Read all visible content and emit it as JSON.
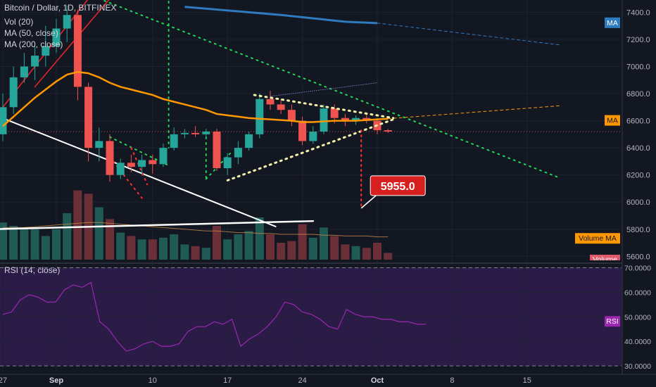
{
  "chart_data": {
    "type": "candlestick",
    "header": {
      "symbol_line": "Bitcoin / Dollar, 1D, BITFINEX",
      "indicators": [
        "Vol (20)",
        "MA (50, close)",
        "MA (200, close)"
      ]
    },
    "price_axis": {
      "ticks": [
        "7400.0",
        "7200.0",
        "7000.0",
        "6800.0",
        "6600.0",
        "6400.0",
        "6200.0",
        "6000.0",
        "5800.0",
        "5600.0"
      ],
      "tick_values": [
        7400,
        7200,
        7000,
        6800,
        6600,
        6400,
        6200,
        6000,
        5800,
        5600
      ],
      "range": [
        5560,
        7480
      ]
    },
    "time_axis": {
      "ticks": [
        "27",
        "Sep",
        "10",
        "17",
        "24",
        "Oct",
        "8",
        "15"
      ],
      "tick_day_index": [
        0,
        5,
        14,
        21,
        28,
        35,
        42,
        49
      ],
      "start_date": "2018-08-27"
    },
    "candles": [
      {
        "o": 6500,
        "h": 6800,
        "l": 6450,
        "c": 6700,
        "v": 44
      },
      {
        "o": 6700,
        "h": 7000,
        "l": 6650,
        "c": 6920,
        "v": 40
      },
      {
        "o": 6920,
        "h": 7100,
        "l": 6880,
        "c": 7000,
        "v": 38
      },
      {
        "o": 7000,
        "h": 7150,
        "l": 6900,
        "c": 7080,
        "v": 36
      },
      {
        "o": 7080,
        "h": 7300,
        "l": 7000,
        "c": 7150,
        "v": 28
      },
      {
        "o": 7150,
        "h": 7350,
        "l": 7100,
        "c": 7280,
        "v": 36
      },
      {
        "o": 7280,
        "h": 7450,
        "l": 7180,
        "c": 7380,
        "v": 55
      },
      {
        "o": 7380,
        "h": 7420,
        "l": 6750,
        "c": 6850,
        "v": 82
      },
      {
        "o": 6850,
        "h": 6880,
        "l": 6300,
        "c": 6400,
        "v": 78
      },
      {
        "o": 6400,
        "h": 6550,
        "l": 6300,
        "c": 6450,
        "v": 62
      },
      {
        "o": 6450,
        "h": 6500,
        "l": 6150,
        "c": 6200,
        "v": 48
      },
      {
        "o": 6200,
        "h": 6320,
        "l": 6170,
        "c": 6290,
        "v": 32
      },
      {
        "o": 6290,
        "h": 6350,
        "l": 6220,
        "c": 6260,
        "v": 28
      },
      {
        "o": 6260,
        "h": 6350,
        "l": 6200,
        "c": 6310,
        "v": 24
      },
      {
        "o": 6310,
        "h": 6350,
        "l": 6210,
        "c": 6280,
        "v": 24
      },
      {
        "o": 6280,
        "h": 6430,
        "l": 6260,
        "c": 6400,
        "v": 26
      },
      {
        "o": 6400,
        "h": 6550,
        "l": 6380,
        "c": 6500,
        "v": 30
      },
      {
        "o": 6500,
        "h": 6540,
        "l": 6470,
        "c": 6510,
        "v": 18
      },
      {
        "o": 6510,
        "h": 6560,
        "l": 6480,
        "c": 6500,
        "v": 16
      },
      {
        "o": 6500,
        "h": 6540,
        "l": 6470,
        "c": 6520,
        "v": 14
      },
      {
        "o": 6520,
        "h": 6540,
        "l": 6230,
        "c": 6250,
        "v": 40
      },
      {
        "o": 6250,
        "h": 6360,
        "l": 6200,
        "c": 6330,
        "v": 24
      },
      {
        "o": 6330,
        "h": 6450,
        "l": 6280,
        "c": 6400,
        "v": 30
      },
      {
        "o": 6400,
        "h": 6520,
        "l": 6380,
        "c": 6500,
        "v": 34
      },
      {
        "o": 6500,
        "h": 6800,
        "l": 6470,
        "c": 6760,
        "v": 50
      },
      {
        "o": 6760,
        "h": 6820,
        "l": 6680,
        "c": 6720,
        "v": 30
      },
      {
        "o": 6720,
        "h": 6760,
        "l": 6650,
        "c": 6680,
        "v": 20
      },
      {
        "o": 6680,
        "h": 6720,
        "l": 6560,
        "c": 6600,
        "v": 22
      },
      {
        "o": 6600,
        "h": 6630,
        "l": 6420,
        "c": 6450,
        "v": 42
      },
      {
        "o": 6450,
        "h": 6560,
        "l": 6430,
        "c": 6520,
        "v": 26
      },
      {
        "o": 6520,
        "h": 6720,
        "l": 6500,
        "c": 6690,
        "v": 38
      },
      {
        "o": 6690,
        "h": 6720,
        "l": 6580,
        "c": 6620,
        "v": 28
      },
      {
        "o": 6620,
        "h": 6650,
        "l": 6560,
        "c": 6600,
        "v": 18
      },
      {
        "o": 6600,
        "h": 6640,
        "l": 6570,
        "c": 6620,
        "v": 16
      },
      {
        "o": 6620,
        "h": 6650,
        "l": 6580,
        "c": 6600,
        "v": 14
      },
      {
        "o": 6600,
        "h": 6620,
        "l": 6500,
        "c": 6530,
        "v": 20
      },
      {
        "o": 6530,
        "h": 6540,
        "l": 6510,
        "c": 6520,
        "v": 8
      }
    ],
    "ma50": [
      6560,
      6630,
      6700,
      6770,
      6830,
      6890,
      6940,
      6960,
      6950,
      6920,
      6880,
      6850,
      6830,
      6810,
      6790,
      6760,
      6740,
      6720,
      6700,
      6680,
      6650,
      6640,
      6630,
      6620,
      6615,
      6610,
      6605,
      6600,
      6590,
      6590,
      6595,
      6600,
      6600,
      6600,
      6605,
      6610,
      6615
    ],
    "ma200": {
      "label": "MA",
      "points": [
        [
          17,
          7440
        ],
        [
          20,
          7420
        ],
        [
          26,
          7380
        ],
        [
          32,
          7330
        ],
        [
          35,
          7320
        ]
      ]
    },
    "ma200_projection": {
      "from": [
        35,
        7320
      ],
      "to": [
        52,
        7160
      ]
    },
    "ma50_projection": {
      "from": [
        36,
        6615
      ],
      "to": [
        52,
        6710
      ]
    },
    "volume_ma": [
      38,
      38,
      38,
      39,
      40,
      41,
      42,
      43,
      44,
      44,
      43,
      42,
      41,
      40,
      39,
      38,
      37,
      36,
      35,
      34,
      34,
      33,
      32,
      32,
      31,
      31,
      30,
      30,
      30,
      30,
      29,
      29,
      28,
      28,
      28,
      27,
      27
    ],
    "drawings": {
      "red_channel": [
        {
          "from": [
            -1,
            6600
          ],
          "to": [
            10,
            7700
          ]
        },
        {
          "from": [
            3,
            6850
          ],
          "to": [
            10,
            7500
          ]
        }
      ],
      "white_line_falling": {
        "from": [
          -1,
          6650
        ],
        "to": [
          25.5,
          5820
        ]
      },
      "white_line_flat": {
        "from": [
          -1,
          5800
        ],
        "to": [
          29,
          5860
        ]
      },
      "green_trend_long": {
        "from": [
          9,
          7500
        ],
        "to": [
          52,
          6180
        ]
      },
      "green_vertical": {
        "from": [
          15.5,
          7480
        ],
        "to": [
          15.5,
          6400
        ]
      },
      "green_flag_upper": {
        "from": [
          10,
          6480
        ],
        "to": [
          15.5,
          6270
        ]
      },
      "green_vertical_2": {
        "from": [
          19,
          6520
        ],
        "to": [
          19,
          6170
        ]
      },
      "green_flag_lower": {
        "from": [
          19,
          6170
        ],
        "to": [
          21.5,
          6380
        ]
      },
      "red_dotted_1": {
        "from": [
          10,
          6330
        ],
        "to": [
          13,
          6030
        ]
      },
      "red_dotted_2": {
        "from": [
          12,
          6400
        ],
        "to": [
          13.5,
          6130
        ]
      },
      "triangle_upper": {
        "from": [
          23.5,
          6790
        ],
        "to": [
          36.5,
          6620
        ]
      },
      "triangle_lower": {
        "from": [
          21,
          6160
        ],
        "to": [
          36.5,
          6610
        ]
      },
      "purple_upper": {
        "from": [
          25,
          6780
        ],
        "to": [
          35,
          6880
        ]
      },
      "price_line": 6520,
      "target_drop": {
        "from": [
          33.5,
          6530
        ],
        "to": [
          33.5,
          5960
        ]
      }
    },
    "target_label": "5955.0",
    "target_value": 5955.0,
    "pill_ma200": "MA",
    "pill_ma50": "MA",
    "volume_ma_label": "Volume MA",
    "volume_pill": "Volume",
    "rsi": {
      "title": "RSI (14, close)",
      "ticks": [
        "70.0000",
        "60.0000",
        "50.0000",
        "40.0000",
        "30.0000"
      ],
      "tick_values": [
        70,
        60,
        50,
        40,
        30
      ],
      "range": [
        28,
        71
      ],
      "upper_band": 70,
      "lower_band": 30,
      "pill_label": "RSI",
      "pill_value": 48,
      "values": [
        51,
        52,
        57,
        59,
        58,
        56,
        56,
        61,
        63,
        62,
        64,
        48,
        45,
        40,
        36,
        37,
        39,
        40,
        38,
        38,
        39,
        44,
        46,
        46,
        48,
        47,
        49,
        38,
        41,
        43,
        46,
        50,
        56,
        55,
        52,
        51,
        49,
        46,
        45,
        53,
        51,
        50,
        50,
        49,
        49,
        48,
        48,
        47,
        47
      ]
    },
    "colors": {
      "background": "#131722",
      "grid": "#1e2230",
      "up": "#26a69a",
      "down": "#ef5350",
      "ma50": "#ff9800",
      "ma200": "#2f7bbf",
      "rsi": "#9c27b0",
      "rsi_band": "#2a1b47",
      "axis_text": "#b2b5be",
      "target": "#d61f1f"
    }
  }
}
